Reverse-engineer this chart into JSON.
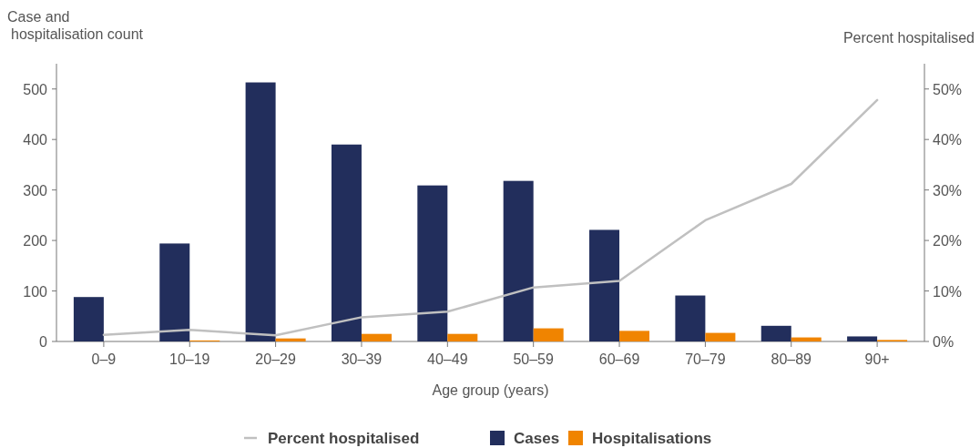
{
  "chart_data": {
    "type": "bar",
    "ylabel": "Case and\nhospitalisation count",
    "y2label": "Percent hospitalised",
    "xlabel": "Age group (years)",
    "categories": [
      "0–9",
      "10–19",
      "20–29",
      "30–39",
      "40–49",
      "50–59",
      "60–69",
      "70–79",
      "80–89",
      "90+"
    ],
    "series": [
      {
        "name": "Percent hospitalised",
        "type": "line",
        "axis": "y2",
        "color": "#c0c0c0",
        "values": [
          1.3,
          2.3,
          1.2,
          4.8,
          5.9,
          10.7,
          12,
          24,
          31.2,
          47.8
        ]
      },
      {
        "name": "Cases",
        "color": "#222e5c",
        "values": [
          88,
          194,
          513,
          390,
          309,
          318,
          221,
          91,
          31,
          10
        ]
      },
      {
        "name": "Hospitalisations",
        "color": "#f08400",
        "values": [
          0,
          2,
          6,
          15,
          15,
          26,
          21,
          17,
          8,
          3
        ]
      }
    ],
    "ylim": [
      0,
      550
    ],
    "yticks": [
      0,
      100,
      200,
      300,
      400,
      500
    ],
    "y2lim": [
      0,
      55
    ],
    "y2ticks": [
      {
        "value": 0,
        "label": "0%"
      },
      {
        "value": 10,
        "label": "10%"
      },
      {
        "value": 20,
        "label": "20%"
      },
      {
        "value": 30,
        "label": "30%"
      },
      {
        "value": 40,
        "label": "40%"
      },
      {
        "value": 50,
        "label": "50%"
      }
    ],
    "legend": "bottom",
    "grid": false
  }
}
